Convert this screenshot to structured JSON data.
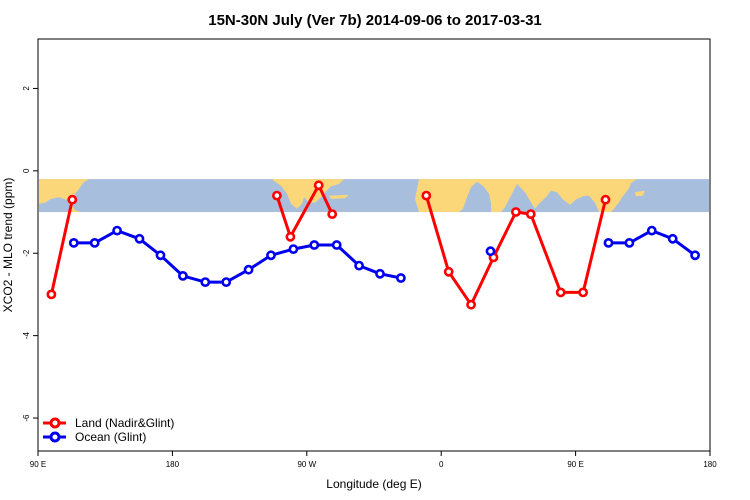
{
  "chart_data": {
    "type": "line",
    "title": "15N-30N July (Ver 7b)   2014-09-06 to 2017-03-31",
    "xlabel": "Longitude (deg E)",
    "ylabel": "XCO2 - MLO trend (ppm)",
    "xlim": [
      90,
      540
    ],
    "ylim": [
      -6.8,
      3.2
    ],
    "x_ticks": [
      {
        "value": 90,
        "label": "90 E"
      },
      {
        "value": 180,
        "label": "180"
      },
      {
        "value": 270,
        "label": "90 W"
      },
      {
        "value": 360,
        "label": "0"
      },
      {
        "value": 450,
        "label": "90 E"
      },
      {
        "value": 540,
        "label": "180"
      }
    ],
    "y_ticks": [
      {
        "value": 2,
        "label": "2"
      },
      {
        "value": 0,
        "label": "0"
      },
      {
        "value": -2,
        "label": "-2"
      },
      {
        "value": -4,
        "label": "-4"
      },
      {
        "value": -6,
        "label": "-6"
      }
    ],
    "map_band": {
      "ymin": -1.0,
      "ymax": -0.2,
      "ocean_color": "#a7bfdd",
      "land_color": "#fbd77a"
    },
    "series": [
      {
        "name": "Land (Nadir&Glint)",
        "color": "#ff0000",
        "segments": [
          [
            [
              99,
              -3.0
            ],
            [
              113,
              -0.7
            ]
          ],
          [
            [
              250,
              -0.6
            ],
            [
              259,
              -1.6
            ],
            [
              278,
              -0.35
            ],
            [
              287,
              -1.05
            ]
          ],
          [
            [
              350,
              -0.6
            ],
            [
              365,
              -2.45
            ],
            [
              380,
              -3.25
            ],
            [
              395,
              -2.1
            ],
            [
              410,
              -1.0
            ],
            [
              420,
              -1.05
            ],
            [
              440,
              -2.95
            ],
            [
              455,
              -2.95
            ],
            [
              470,
              -0.7
            ]
          ]
        ]
      },
      {
        "name": "Ocean (Glint)",
        "color": "#0000ee",
        "segments": [
          [
            [
              114,
              -1.75
            ],
            [
              128,
              -1.75
            ],
            [
              143,
              -1.45
            ],
            [
              158,
              -1.65
            ],
            [
              172,
              -2.05
            ],
            [
              187,
              -2.55
            ],
            [
              202,
              -2.7
            ],
            [
              216,
              -2.7
            ],
            [
              231,
              -2.4
            ],
            [
              246,
              -2.05
            ],
            [
              261,
              -1.9
            ],
            [
              275,
              -1.8
            ],
            [
              290,
              -1.8
            ],
            [
              305,
              -2.3
            ],
            [
              319,
              -2.5
            ],
            [
              333,
              -2.6
            ]
          ],
          [
            [
              393,
              -1.95
            ]
          ],
          [
            [
              472,
              -1.75
            ],
            [
              486,
              -1.75
            ],
            [
              501,
              -1.45
            ],
            [
              515,
              -1.65
            ],
            [
              530,
              -2.05
            ]
          ]
        ]
      }
    ],
    "legend_position": "bottom-left"
  }
}
